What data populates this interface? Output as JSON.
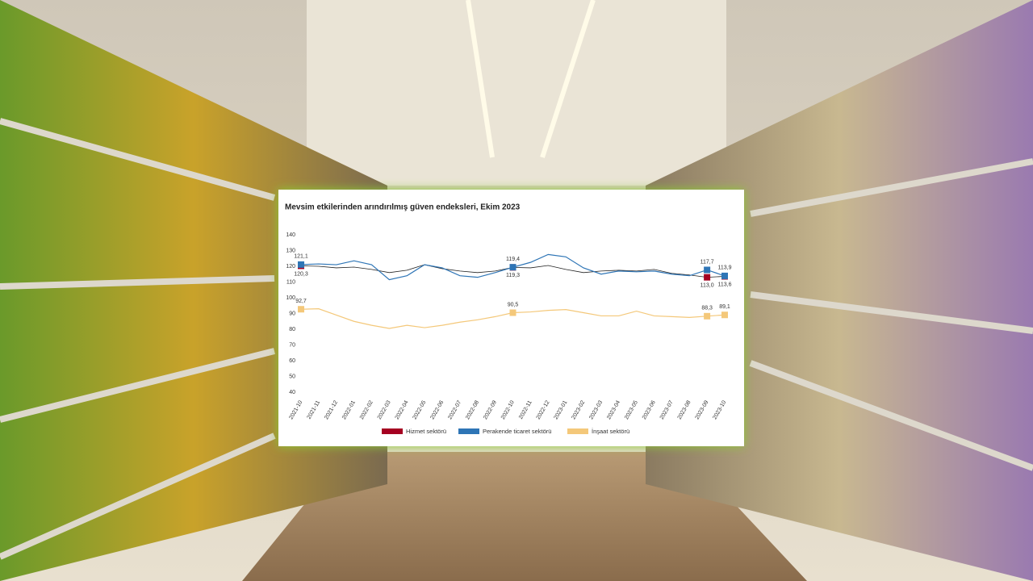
{
  "chart_data": {
    "type": "line",
    "title": "Mevsim etkilerinden arındırılmış güven endeksleri, Ekim 2023",
    "categories": [
      "2021-10",
      "2021-11",
      "2021-12",
      "2022-01",
      "2022-02",
      "2022-03",
      "2022-04",
      "2022-05",
      "2022-06",
      "2022-07",
      "2022-08",
      "2022-09",
      "2022-10",
      "2022-11",
      "2022-12",
      "2023-01",
      "2023-02",
      "2023-03",
      "2023-04",
      "2023-05",
      "2023-06",
      "2023-07",
      "2023-08",
      "2023-09",
      "2023-10"
    ],
    "ylim": [
      40,
      140
    ],
    "yticks": [
      40,
      50,
      60,
      70,
      80,
      90,
      100,
      110,
      120,
      130,
      140
    ],
    "series": [
      {
        "name": "Hizmet sektörü",
        "color": "#a50021",
        "values": [
          120.3,
          120,
          119,
          119.5,
          118,
          116,
          117.5,
          121,
          118.5,
          117,
          116,
          117,
          119.3,
          119,
          120.5,
          118,
          116,
          117,
          117.5,
          117,
          118,
          115.5,
          114.5,
          113.0,
          113.6
        ],
        "value_labels": [
          "120,3",
          null,
          null,
          null,
          null,
          null,
          null,
          null,
          null,
          null,
          null,
          null,
          "119,3",
          null,
          null,
          null,
          null,
          null,
          null,
          null,
          null,
          null,
          null,
          "113,0",
          "113,6"
        ]
      },
      {
        "name": "Perakende ticaret sektörü",
        "color": "#2e75b6",
        "values": [
          121.1,
          121.5,
          121,
          123.5,
          121,
          111.5,
          114,
          121,
          119,
          114,
          113,
          116,
          119.4,
          122.5,
          127.5,
          126,
          119,
          115,
          117,
          116.5,
          117,
          115,
          114,
          117.7,
          113.9
        ],
        "value_labels": [
          "121,1",
          null,
          null,
          null,
          null,
          null,
          null,
          null,
          null,
          null,
          null,
          null,
          "119,4",
          null,
          null,
          null,
          null,
          null,
          null,
          null,
          null,
          null,
          null,
          "117,7",
          "113,9"
        ]
      },
      {
        "name": "İnşaat sektörü",
        "color": "#f4c87a",
        "values": [
          92.7,
          93,
          89,
          85,
          82.5,
          80.5,
          82.5,
          81,
          82.5,
          84.5,
          86,
          88,
          90.5,
          91,
          92,
          92.5,
          90.5,
          88.5,
          88.5,
          91.5,
          88.5,
          88,
          87.5,
          88.3,
          89.1
        ],
        "value_labels": [
          "92,7",
          null,
          null,
          null,
          null,
          null,
          null,
          null,
          null,
          null,
          null,
          null,
          "90,5",
          null,
          null,
          null,
          null,
          null,
          null,
          null,
          null,
          null,
          null,
          "88,3",
          "89,1"
        ]
      }
    ]
  }
}
